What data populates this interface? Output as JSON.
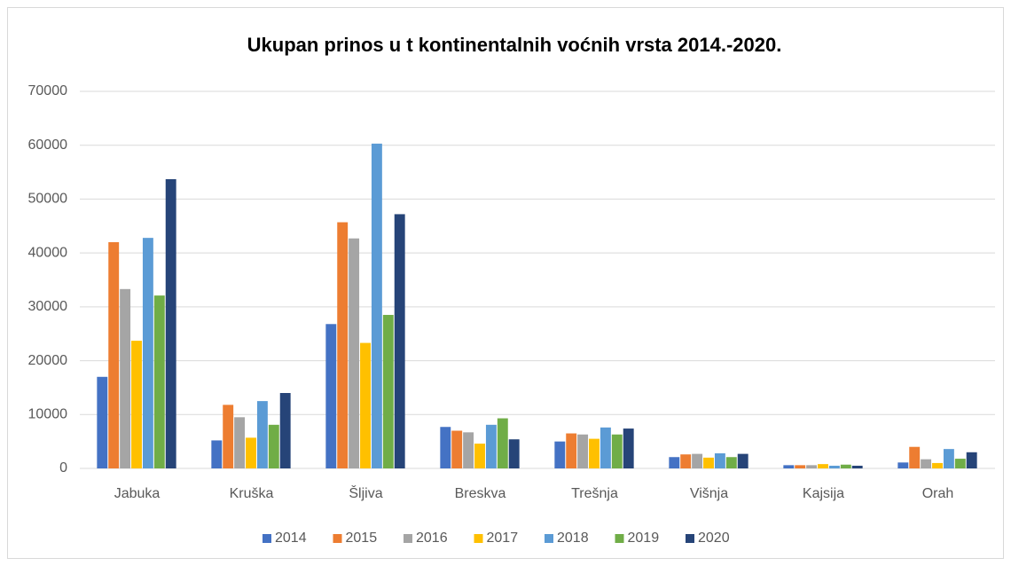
{
  "chart_data": {
    "type": "bar",
    "title": "Ukupan prinos u t kontinentalnih voćnih vrsta 2014.-2020.",
    "categories": [
      "Jabuka",
      "Kruška",
      "Šljiva",
      "Breskva",
      "Trešnja",
      "Višnja",
      "Kajsija",
      "Orah"
    ],
    "series": [
      {
        "name": "2014",
        "color": "#4472c4",
        "values": [
          17000,
          5200,
          26800,
          7700,
          5000,
          2100,
          600,
          1100
        ]
      },
      {
        "name": "2015",
        "color": "#ed7d31",
        "values": [
          42000,
          11800,
          45700,
          7000,
          6500,
          2600,
          600,
          4000
        ]
      },
      {
        "name": "2016",
        "color": "#a5a5a5",
        "values": [
          33300,
          9500,
          42700,
          6700,
          6300,
          2700,
          600,
          1700
        ]
      },
      {
        "name": "2017",
        "color": "#ffc000",
        "values": [
          23700,
          5700,
          23300,
          4600,
          5500,
          2000,
          800,
          1000
        ]
      },
      {
        "name": "2018",
        "color": "#5b9bd5",
        "values": [
          42800,
          12500,
          60300,
          8100,
          7600,
          2800,
          500,
          3600
        ]
      },
      {
        "name": "2019",
        "color": "#70ad47",
        "values": [
          32100,
          8100,
          28500,
          9300,
          6300,
          2100,
          700,
          1800
        ]
      },
      {
        "name": "2020",
        "color": "#264478",
        "values": [
          53700,
          14000,
          47200,
          5400,
          7400,
          2700,
          500,
          3000
        ]
      }
    ],
    "ylim": [
      0,
      70000
    ],
    "yticks": [
      0,
      10000,
      20000,
      30000,
      40000,
      50000,
      60000,
      70000
    ],
    "grid": true,
    "legend": "bottom"
  }
}
